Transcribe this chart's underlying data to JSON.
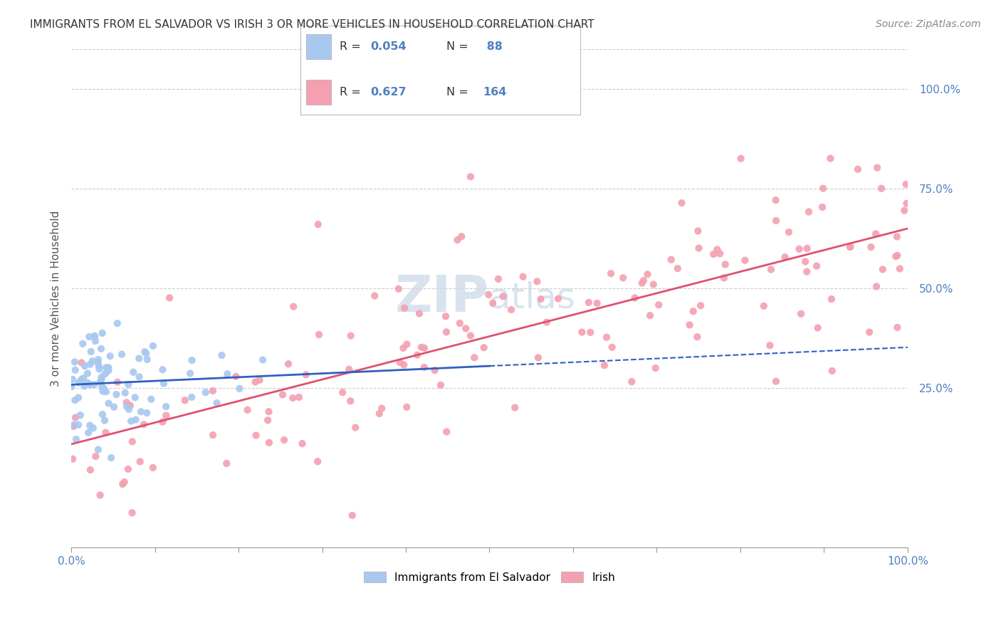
{
  "title": "IMMIGRANTS FROM EL SALVADOR VS IRISH 3 OR MORE VEHICLES IN HOUSEHOLD CORRELATION CHART",
  "source": "Source: ZipAtlas.com",
  "ylabel": "3 or more Vehicles in Household",
  "legend_label1": "Immigrants from El Salvador",
  "legend_label2": "Irish",
  "R1": 0.054,
  "N1": 88,
  "R2": 0.627,
  "N2": 164,
  "color1": "#a8c8f0",
  "color2": "#f4a0b0",
  "line_color1": "#3060c0",
  "line_color2": "#e05070",
  "tick_color": "#5080c0",
  "background_color": "#ffffff",
  "grid_color": "#cccccc",
  "watermark_color": "#c8d8e8",
  "xmin": 0,
  "xmax": 100,
  "ymin": -15,
  "ymax": 110,
  "ytick_vals": [
    25,
    50,
    75,
    100
  ]
}
